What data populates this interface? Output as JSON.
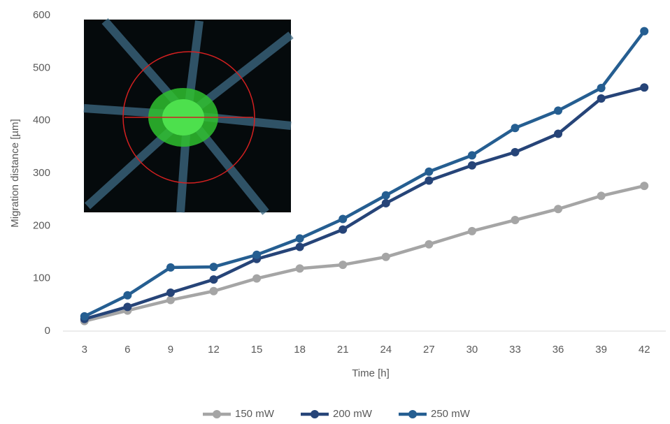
{
  "chart_data": {
    "type": "line",
    "x": [
      3,
      6,
      9,
      12,
      15,
      18,
      21,
      24,
      27,
      30,
      33,
      36,
      39,
      42
    ],
    "xlim": [
      1.5,
      43.5
    ],
    "xticks": [
      3,
      6,
      9,
      12,
      15,
      18,
      21,
      24,
      27,
      30,
      33,
      36,
      39,
      42
    ],
    "ylim": [
      0,
      600
    ],
    "yticks": [
      0,
      100,
      200,
      300,
      400,
      500,
      600
    ],
    "x_label": "Time [h]",
    "y_label": "Migration distance [µm]",
    "grid": false,
    "legend": "bottom",
    "series": [
      {
        "name": "150 mW",
        "color": "#a5a5a5",
        "values": [
          19,
          39,
          59,
          76,
          100,
          119,
          126,
          141,
          165,
          190,
          211,
          232,
          257,
          276
        ]
      },
      {
        "name": "200 mW",
        "color": "#264478",
        "values": [
          23,
          46,
          73,
          98,
          137,
          160,
          193,
          243,
          286,
          315,
          340,
          375,
          442,
          463
        ]
      },
      {
        "name": "250 mW",
        "color": "#255e91",
        "values": [
          28,
          68,
          121,
          122,
          145,
          176,
          213,
          258,
          303,
          334,
          386,
          419,
          462,
          570
        ]
      }
    ]
  }
}
